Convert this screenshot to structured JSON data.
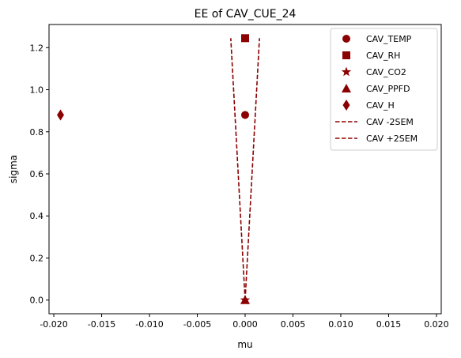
{
  "chart_data": {
    "type": "scatter",
    "title": "EE of CAV_CUE_24",
    "xlabel": "mu",
    "ylabel": "sigma",
    "xlim": [
      -0.0205,
      0.0205
    ],
    "ylim": [
      -0.065,
      1.31
    ],
    "xticks": [
      -0.02,
      -0.015,
      -0.01,
      -0.005,
      0.0,
      0.005,
      0.01,
      0.015,
      0.02
    ],
    "xtick_labels": [
      "-0.020",
      "-0.015",
      "-0.010",
      "-0.005",
      "0.000",
      "0.005",
      "0.010",
      "0.015",
      "0.020"
    ],
    "yticks": [
      0.0,
      0.2,
      0.4,
      0.6,
      0.8,
      1.0,
      1.2
    ],
    "ytick_labels": [
      "0.0",
      "0.2",
      "0.4",
      "0.6",
      "0.8",
      "1.0",
      "1.2"
    ],
    "grid": false,
    "legend_position": "top-right",
    "color": "#8b0000",
    "points": [
      {
        "name": "CAV_TEMP",
        "marker": "circle",
        "x": 0.0,
        "y": 0.88
      },
      {
        "name": "CAV_RH",
        "marker": "square",
        "x": 0.0,
        "y": 1.245
      },
      {
        "name": "CAV_CO2",
        "marker": "star",
        "x": 0.0,
        "y": 0.0
      },
      {
        "name": "CAV_PPFD",
        "marker": "triangle",
        "x": 0.0,
        "y": 0.0
      },
      {
        "name": "CAV_H",
        "marker": "diamond",
        "x": -0.0193,
        "y": 0.88
      }
    ],
    "lines": [
      {
        "name": "CAV -2SEM",
        "style": "dashed",
        "x": [
          0.0,
          -0.0015
        ],
        "y": [
          0.0,
          1.245
        ]
      },
      {
        "name": "CAV +2SEM",
        "style": "dashed",
        "x": [
          0.0,
          0.0015
        ],
        "y": [
          0.0,
          1.245
        ]
      }
    ]
  }
}
